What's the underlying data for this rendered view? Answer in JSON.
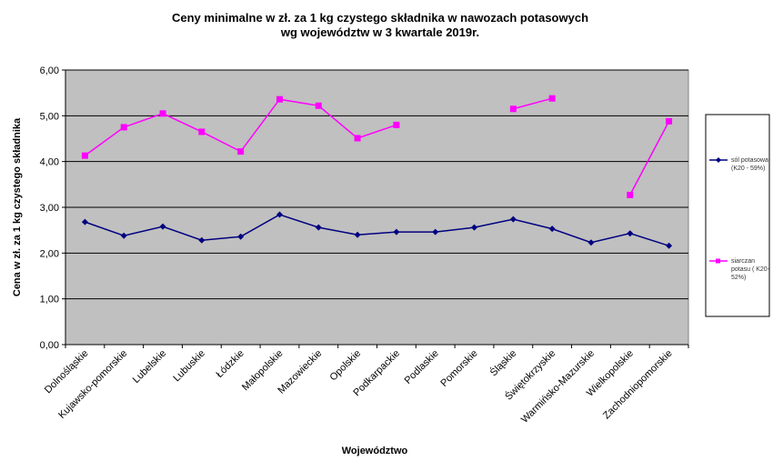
{
  "chart_data": {
    "type": "line",
    "title_lines": [
      "Ceny minimalne  w zł. za 1 kg czystego składnika w nawozach potasowych",
      "wg województw w 3 kwartale 2019r."
    ],
    "xlabel": "Województwo",
    "ylabel": "Cena w zł. za 1 kg czystego składnika",
    "ylim": [
      0,
      6
    ],
    "yticks": [
      "0,00",
      "1,00",
      "2,00",
      "3,00",
      "4,00",
      "5,00",
      "6,00"
    ],
    "grid": true,
    "plot_background": "#c0c0c0",
    "legend_position": "right",
    "categories": [
      "Dolnośląskie",
      "Kujawsko-pomorskie",
      "Lubelskie",
      "Lubuskie",
      "Łódzkie",
      "Małopolskie",
      "Mazowieckie",
      "Opolskie",
      "Podkarpackie",
      "Podlaskie",
      "Pomorskie",
      "Śląskie",
      "Świętokrzyskie",
      "Warmińsko-Mazurskie",
      "Wielkopolskie",
      "Zachodniopomorskie"
    ],
    "series": [
      {
        "name_lines": [
          "sól potasowa",
          "(K20 - 59%)"
        ],
        "color": "#000080",
        "marker": "diamond",
        "values": [
          2.68,
          2.38,
          2.58,
          2.28,
          2.36,
          2.84,
          2.56,
          2.4,
          2.46,
          2.46,
          2.56,
          2.74,
          2.53,
          2.23,
          2.43,
          2.16
        ]
      },
      {
        "name_lines": [
          "siarczan",
          "potasu ( K20-",
          "52%)"
        ],
        "color": "#ff00ff",
        "marker": "square",
        "values": [
          4.13,
          4.75,
          5.05,
          4.65,
          4.22,
          5.36,
          5.22,
          4.51,
          4.8,
          null,
          null,
          5.15,
          5.38,
          null,
          3.27,
          4.88
        ]
      }
    ]
  }
}
